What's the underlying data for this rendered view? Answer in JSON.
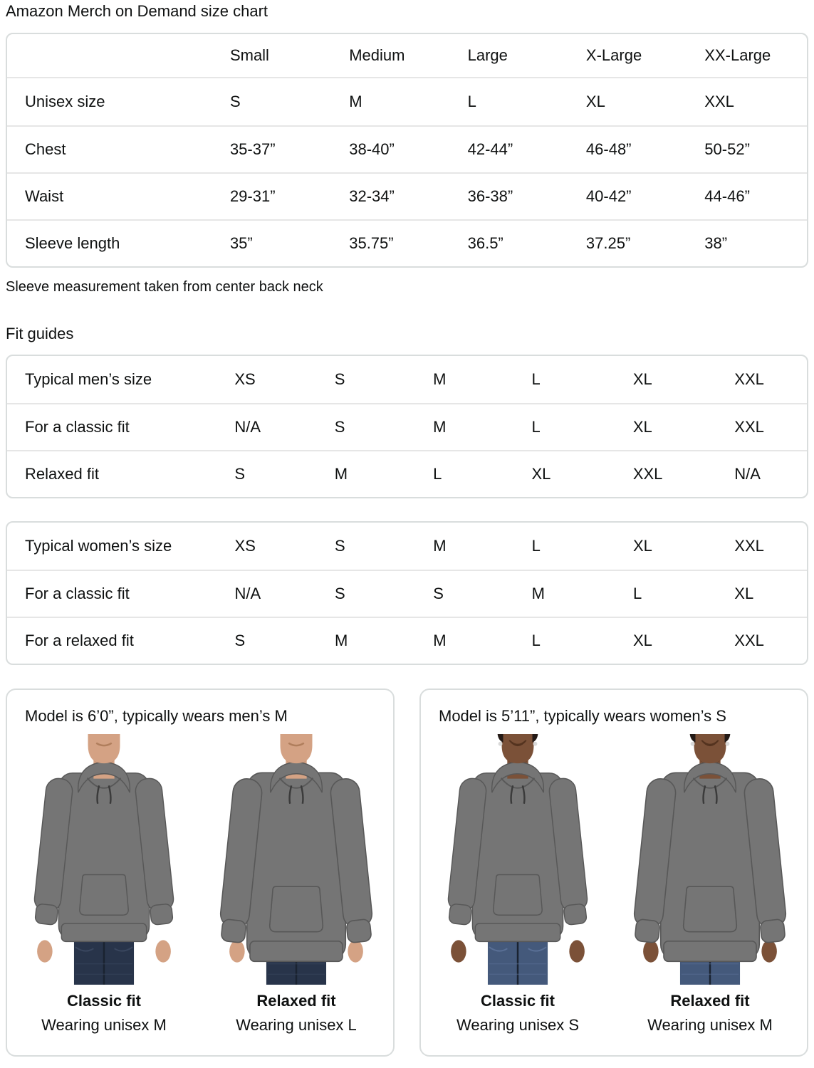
{
  "page": {
    "title": "Amazon Merch on Demand size chart",
    "note": "Sleeve measurement taken from center back neck",
    "fit_guides_heading": "Fit guides"
  },
  "size_table": {
    "headers": [
      "",
      "Small",
      "Medium",
      "Large",
      "X-Large",
      "XX-Large"
    ],
    "rows": [
      {
        "label": "Unisex size",
        "values": [
          "S",
          "M",
          "L",
          "XL",
          "XXL"
        ]
      },
      {
        "label": "Chest",
        "values": [
          "35-37”",
          "38-40”",
          "42-44”",
          "46-48”",
          "50-52”"
        ]
      },
      {
        "label": "Waist",
        "values": [
          "29-31”",
          "32-34”",
          "36-38”",
          "40-42”",
          "44-46”"
        ]
      },
      {
        "label": "Sleeve length",
        "values": [
          "35”",
          "35.75”",
          "36.5”",
          "37.25”",
          "38”"
        ]
      }
    ]
  },
  "mens_fit_table": {
    "rows": [
      {
        "label": "Typical men’s size",
        "values": [
          "XS",
          "S",
          "M",
          "L",
          "XL",
          "XXL"
        ]
      },
      {
        "label": "For a classic fit",
        "values": [
          "N/A",
          "S",
          "M",
          "L",
          "XL",
          "XXL"
        ]
      },
      {
        "label": "Relaxed fit",
        "values": [
          "S",
          "M",
          "L",
          "XL",
          "XXL",
          "N/A"
        ]
      }
    ]
  },
  "womens_fit_table": {
    "rows": [
      {
        "label": "Typical women’s size",
        "values": [
          "XS",
          "S",
          "M",
          "L",
          "XL",
          "XXL"
        ]
      },
      {
        "label": "For a classic fit",
        "values": [
          "N/A",
          "S",
          "S",
          "M",
          "L",
          "XL"
        ]
      },
      {
        "label": "For a relaxed fit",
        "values": [
          "S",
          "M",
          "M",
          "L",
          "XL",
          "XXL"
        ]
      }
    ]
  },
  "model_cards": [
    {
      "title": "Model is 6’0”, typically wears men’s M",
      "person": "man",
      "photos": [
        {
          "fit": "Classic fit",
          "wearing": "Wearing unisex M",
          "variant": "classic"
        },
        {
          "fit": "Relaxed fit",
          "wearing": "Wearing unisex L",
          "variant": "relaxed"
        }
      ]
    },
    {
      "title": "Model is 5’11”, typically wears women’s S",
      "person": "woman",
      "photos": [
        {
          "fit": "Classic fit",
          "wearing": "Wearing unisex S",
          "variant": "classic"
        },
        {
          "fit": "Relaxed fit",
          "wearing": "Wearing unisex M",
          "variant": "relaxed"
        }
      ]
    }
  ],
  "colors": {
    "text": "#0f1111",
    "table_border": "#d9dddd",
    "row_separator": "#e6e6e6",
    "hoodie": "#757575",
    "hoodie_dark": "#585858",
    "drawstring": "#3b3b3b",
    "jeans_man": "#28344a",
    "jeans_woman": "#44597b",
    "skin_man": "#d4a284",
    "skin_man_shadow": "#b07e5c",
    "skin_woman": "#7b5138",
    "skin_woman_shadow": "#54331f"
  }
}
